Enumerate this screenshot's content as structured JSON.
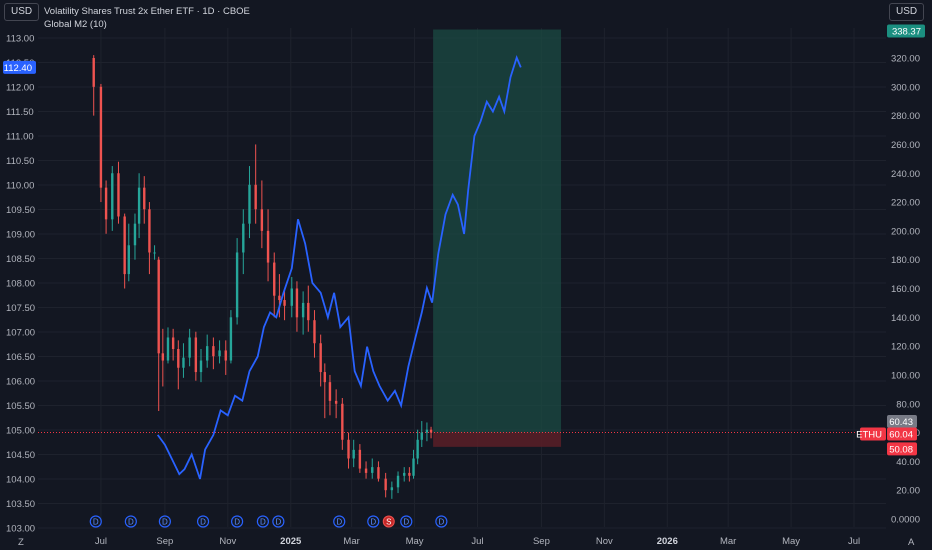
{
  "header": {
    "currency_left": "USD",
    "currency_right": "USD",
    "title": "Volatility Shares Trust 2x Ether ETF · 1D · CBOE",
    "indicator": "Global M2 (10)"
  },
  "colors": {
    "background": "#131722",
    "grid": "#1e222d",
    "up": "#26a69a",
    "down": "#ef5350",
    "m2_line": "#2962ff",
    "target_zone": "#1b4b43",
    "stop_zone": "#5a1f27",
    "price_line": "#f23645"
  },
  "chart_data": {
    "type": "candlestick",
    "left_axis": {
      "label": "Global M2",
      "ticks": [
        "113.00",
        "112.50",
        "112.00",
        "111.50",
        "111.00",
        "110.50",
        "110.00",
        "109.50",
        "109.00",
        "108.50",
        "108.00",
        "107.50",
        "107.00",
        "106.50",
        "106.00",
        "105.50",
        "105.00",
        "104.50",
        "104.00",
        "103.50",
        "103.00"
      ],
      "range": [
        103.0,
        113.0
      ],
      "current_value": "112.40"
    },
    "right_axis": {
      "label": "ETHU",
      "ticks": [
        "320.00",
        "300.00",
        "280.00",
        "260.00",
        "240.00",
        "220.00",
        "200.00",
        "180.00",
        "160.00",
        "140.00",
        "120.00",
        "100.00",
        "80.00",
        "60.00",
        "40.00",
        "20.00",
        "0.0000"
      ],
      "range": [
        0,
        330
      ]
    },
    "x_ticks": [
      {
        "label": "Jul",
        "bold": false
      },
      {
        "label": "Sep",
        "bold": false
      },
      {
        "label": "Nov",
        "bold": false
      },
      {
        "label": "2025",
        "bold": true
      },
      {
        "label": "Mar",
        "bold": false
      },
      {
        "label": "May",
        "bold": false
      },
      {
        "label": "Jul",
        "bold": false
      },
      {
        "label": "Sep",
        "bold": false
      },
      {
        "label": "Nov",
        "bold": false
      },
      {
        "label": "2026",
        "bold": true
      },
      {
        "label": "Mar",
        "bold": false
      },
      {
        "label": "May",
        "bold": false
      },
      {
        "label": "Jul",
        "bold": false
      }
    ],
    "price_tags": {
      "target": "338.37",
      "entry_top": "60.43",
      "symbol": "ETHU",
      "last": "60.04",
      "stop": "50.08"
    },
    "events": [
      "D",
      "D",
      "D",
      "D",
      "D",
      "D",
      "D",
      "D",
      "D",
      "S",
      "D",
      "D"
    ],
    "m2_series": [
      [
        "2024-08-25",
        104.9
      ],
      [
        "2024-09-01",
        104.7
      ],
      [
        "2024-09-08",
        104.4
      ],
      [
        "2024-09-15",
        104.1
      ],
      [
        "2024-09-20",
        104.2
      ],
      [
        "2024-09-27",
        104.5
      ],
      [
        "2024-10-05",
        104.0
      ],
      [
        "2024-10-10",
        104.6
      ],
      [
        "2024-10-18",
        104.9
      ],
      [
        "2024-10-25",
        105.4
      ],
      [
        "2024-11-01",
        105.3
      ],
      [
        "2024-11-08",
        105.7
      ],
      [
        "2024-11-15",
        105.6
      ],
      [
        "2024-11-22",
        106.2
      ],
      [
        "2024-11-30",
        106.5
      ],
      [
        "2024-12-06",
        107.1
      ],
      [
        "2024-12-12",
        107.4
      ],
      [
        "2024-12-18",
        107.3
      ],
      [
        "2024-12-25",
        107.8
      ],
      [
        "2025-01-02",
        108.3
      ],
      [
        "2025-01-08",
        109.3
      ],
      [
        "2025-01-15",
        108.8
      ],
      [
        "2025-01-22",
        108.0
      ],
      [
        "2025-01-30",
        107.8
      ],
      [
        "2025-02-06",
        107.3
      ],
      [
        "2025-02-12",
        107.8
      ],
      [
        "2025-02-18",
        107.1
      ],
      [
        "2025-02-26",
        107.3
      ],
      [
        "2025-03-04",
        106.2
      ],
      [
        "2025-03-10",
        105.9
      ],
      [
        "2025-03-16",
        106.7
      ],
      [
        "2025-03-22",
        106.2
      ],
      [
        "2025-03-28",
        105.9
      ],
      [
        "2025-04-05",
        105.6
      ],
      [
        "2025-04-12",
        105.8
      ],
      [
        "2025-04-18",
        105.5
      ],
      [
        "2025-04-25",
        106.3
      ],
      [
        "2025-05-02",
        106.9
      ],
      [
        "2025-05-08",
        107.4
      ],
      [
        "2025-05-13",
        107.9
      ],
      [
        "2025-05-18",
        107.6
      ],
      [
        "2025-05-24",
        108.6
      ],
      [
        "2025-05-31",
        109.4
      ],
      [
        "2025-06-07",
        109.8
      ],
      [
        "2025-06-12",
        109.6
      ],
      [
        "2025-06-18",
        109.0
      ],
      [
        "2025-06-22",
        109.9
      ],
      [
        "2025-06-28",
        111.0
      ],
      [
        "2025-07-04",
        111.3
      ],
      [
        "2025-07-10",
        111.7
      ],
      [
        "2025-07-16",
        111.5
      ],
      [
        "2025-07-22",
        111.8
      ],
      [
        "2025-07-27",
        111.5
      ],
      [
        "2025-08-02",
        112.2
      ],
      [
        "2025-08-08",
        112.6
      ],
      [
        "2025-08-12",
        112.4
      ]
    ],
    "candles": [
      [
        "2024-06-24",
        320,
        300,
        322,
        280
      ],
      [
        "2024-07-01",
        300,
        230,
        302,
        220
      ],
      [
        "2024-07-06",
        230,
        208,
        235,
        198
      ],
      [
        "2024-07-12",
        208,
        240,
        245,
        200
      ],
      [
        "2024-07-18",
        240,
        210,
        248,
        205
      ],
      [
        "2024-07-24",
        210,
        170,
        212,
        160
      ],
      [
        "2024-07-28",
        170,
        190,
        205,
        165
      ],
      [
        "2024-08-03",
        190,
        205,
        212,
        180
      ],
      [
        "2024-08-07",
        205,
        230,
        240,
        195
      ],
      [
        "2024-08-12",
        230,
        215,
        238,
        205
      ],
      [
        "2024-08-17",
        215,
        185,
        220,
        170
      ],
      [
        "2024-08-22",
        185,
        185,
        190,
        180
      ],
      [
        "2024-08-26",
        180,
        115,
        182,
        75
      ],
      [
        "2024-08-30",
        115,
        110,
        132,
        92
      ],
      [
        "2024-09-04",
        110,
        126,
        133,
        108
      ],
      [
        "2024-09-09",
        126,
        118,
        132,
        110
      ],
      [
        "2024-09-14",
        118,
        105,
        124,
        90
      ],
      [
        "2024-09-19",
        105,
        112,
        122,
        98
      ],
      [
        "2024-09-25",
        112,
        126,
        132,
        106
      ],
      [
        "2024-10-01",
        126,
        102,
        130,
        96
      ],
      [
        "2024-10-06",
        102,
        110,
        118,
        95
      ],
      [
        "2024-10-12",
        110,
        120,
        128,
        105
      ],
      [
        "2024-10-18",
        120,
        113,
        126,
        104
      ],
      [
        "2024-10-24",
        113,
        117,
        124,
        108
      ],
      [
        "2024-10-30",
        117,
        110,
        124,
        100
      ],
      [
        "2024-11-04",
        110,
        140,
        145,
        108
      ],
      [
        "2024-11-10",
        140,
        185,
        195,
        135
      ],
      [
        "2024-11-16",
        185,
        205,
        215,
        170
      ],
      [
        "2024-11-22",
        205,
        232,
        245,
        195
      ],
      [
        "2024-11-28",
        232,
        215,
        260,
        205
      ],
      [
        "2024-12-04",
        215,
        200,
        235,
        188
      ],
      [
        "2024-12-10",
        200,
        178,
        215,
        165
      ],
      [
        "2024-12-16",
        178,
        155,
        185,
        140
      ],
      [
        "2024-12-21",
        155,
        152,
        170,
        140
      ],
      [
        "2024-12-26",
        152,
        148,
        160,
        138
      ],
      [
        "2025-01-02",
        148,
        160,
        168,
        140
      ],
      [
        "2025-01-07",
        160,
        140,
        165,
        130
      ],
      [
        "2025-01-13",
        140,
        150,
        158,
        128
      ],
      [
        "2025-01-18",
        150,
        138,
        162,
        130
      ],
      [
        "2025-01-24",
        138,
        122,
        145,
        112
      ],
      [
        "2025-01-30",
        122,
        102,
        128,
        92
      ],
      [
        "2025-02-03",
        102,
        95,
        108,
        70
      ],
      [
        "2025-02-08",
        95,
        82,
        100,
        72
      ],
      [
        "2025-02-14",
        82,
        80,
        90,
        70
      ],
      [
        "2025-02-20",
        80,
        55,
        84,
        48
      ],
      [
        "2025-02-26",
        55,
        42,
        60,
        35
      ],
      [
        "2025-03-03",
        42,
        48,
        55,
        36
      ],
      [
        "2025-03-09",
        48,
        35,
        52,
        32
      ],
      [
        "2025-03-15",
        35,
        32,
        40,
        28
      ],
      [
        "2025-03-21",
        32,
        36,
        42,
        28
      ],
      [
        "2025-03-27",
        36,
        28,
        40,
        26
      ],
      [
        "2025-04-03",
        28,
        20,
        32,
        15
      ],
      [
        "2025-04-09",
        20,
        22,
        26,
        14
      ],
      [
        "2025-04-15",
        22,
        30,
        33,
        18
      ],
      [
        "2025-04-21",
        30,
        32,
        36,
        26
      ],
      [
        "2025-04-26",
        32,
        30,
        36,
        26
      ],
      [
        "2025-04-30",
        30,
        42,
        48,
        28
      ],
      [
        "2025-05-04",
        42,
        55,
        62,
        38
      ],
      [
        "2025-05-08",
        55,
        60,
        68,
        50
      ],
      [
        "2025-05-13",
        60,
        62,
        67,
        54
      ],
      [
        "2025-05-17",
        62,
        60,
        64,
        56
      ]
    ],
    "position": {
      "entry": 60.04,
      "target": 338.37,
      "stop": 50.08,
      "start": "2025-05-19",
      "end": "2025-09-20"
    }
  }
}
